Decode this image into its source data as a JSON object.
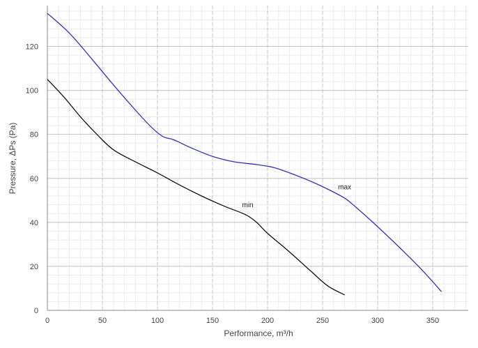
{
  "chart_data": {
    "type": "line",
    "title": "",
    "xlabel": "Performance, m³/h",
    "ylabel": "Pressure, ΔPs (Pa)",
    "xlim": [
      0,
      385
    ],
    "ylim": [
      0,
      138
    ],
    "x_ticks": [
      0,
      50,
      100,
      150,
      200,
      250,
      300,
      350
    ],
    "y_ticks": [
      0,
      20,
      40,
      60,
      80,
      100,
      120
    ],
    "minor_grid_step_x": 10,
    "minor_grid_step_y": 4,
    "grid": true,
    "series": [
      {
        "name": "max",
        "color": "#3030c0",
        "label_at": [
          270,
          55
        ],
        "points": [
          [
            0,
            135
          ],
          [
            20,
            126
          ],
          [
            40,
            114.5
          ],
          [
            60,
            102.5
          ],
          [
            80,
            91
          ],
          [
            95,
            83
          ],
          [
            105,
            79
          ],
          [
            115,
            77.5
          ],
          [
            130,
            74
          ],
          [
            150,
            70
          ],
          [
            170,
            67.5
          ],
          [
            190,
            66.3
          ],
          [
            205,
            65
          ],
          [
            220,
            62.5
          ],
          [
            240,
            58.5
          ],
          [
            255,
            55
          ],
          [
            270,
            51
          ],
          [
            280,
            47
          ],
          [
            300,
            38
          ],
          [
            320,
            28.5
          ],
          [
            340,
            18.5
          ],
          [
            358,
            8.5
          ]
        ]
      },
      {
        "name": "min",
        "color": "#111111",
        "label_at": [
          182,
          47
        ],
        "points": [
          [
            0,
            105
          ],
          [
            15,
            97
          ],
          [
            30,
            88
          ],
          [
            45,
            80
          ],
          [
            60,
            73
          ],
          [
            80,
            67.5
          ],
          [
            100,
            62.5
          ],
          [
            120,
            57
          ],
          [
            140,
            52
          ],
          [
            160,
            47.5
          ],
          [
            180,
            43.5
          ],
          [
            190,
            40
          ],
          [
            200,
            35
          ],
          [
            220,
            26.5
          ],
          [
            240,
            17.5
          ],
          [
            255,
            11
          ],
          [
            270,
            7
          ]
        ]
      }
    ]
  },
  "colors": {
    "major_grid": "#c4c4c4",
    "minor_grid": "#ebebeb",
    "axis": "#888888"
  }
}
